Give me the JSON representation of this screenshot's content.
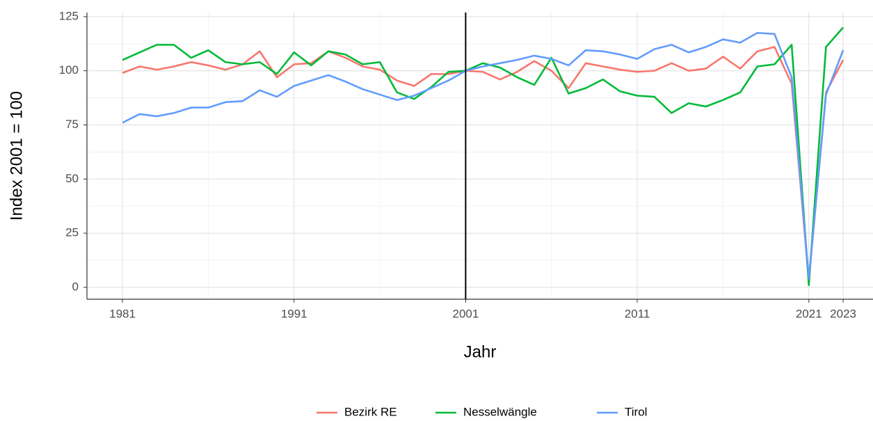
{
  "chart_data": {
    "type": "line",
    "x_label": "Jahr",
    "y_label": "Index 2001 = 100",
    "x": [
      1981,
      1982,
      1983,
      1984,
      1985,
      1986,
      1987,
      1988,
      1989,
      1990,
      1991,
      1992,
      1993,
      1994,
      1995,
      1996,
      1997,
      1998,
      1999,
      2000,
      2001,
      2002,
      2003,
      2004,
      2005,
      2006,
      2007,
      2008,
      2009,
      2010,
      2011,
      2012,
      2013,
      2014,
      2015,
      2016,
      2017,
      2018,
      2019,
      2020,
      2021,
      2022,
      2023
    ],
    "series": [
      {
        "name": "Bezirk RE",
        "color": "#F8766D",
        "values": [
          99,
          102,
          100.5,
          102,
          104,
          102.5,
          100.5,
          103,
          109,
          97,
          103,
          103.5,
          109,
          106,
          102,
          100.5,
          95.5,
          93,
          98.5,
          98.5,
          100,
          99.5,
          96,
          99.5,
          104.5,
          100,
          92,
          103.5,
          102,
          100.5,
          99.5,
          100,
          103.5,
          100,
          101,
          106.5,
          101,
          109,
          111,
          94,
          3,
          90,
          105
        ]
      },
      {
        "name": "Nesselwängle",
        "color": "#00BA38",
        "values": [
          105,
          108.5,
          112,
          112,
          106,
          109.5,
          104,
          103,
          104,
          98.5,
          108.5,
          102.5,
          109,
          107.5,
          103,
          104,
          90,
          87,
          92.5,
          99.5,
          100,
          103.5,
          101.5,
          97,
          93.5,
          106,
          89.5,
          92,
          96,
          90.5,
          88.5,
          88,
          80.5,
          85,
          83.5,
          86.5,
          90,
          102,
          103,
          112,
          1,
          111,
          120
        ]
      },
      {
        "name": "Tirol",
        "color": "#619CFF",
        "values": [
          76,
          80,
          79,
          80.5,
          83,
          83,
          85.5,
          86,
          91,
          88,
          93,
          95.5,
          98,
          95,
          91.5,
          89,
          86.5,
          88.5,
          92,
          95.5,
          100,
          102,
          103.5,
          105,
          107,
          105.5,
          102.5,
          109.5,
          109,
          107.5,
          105.5,
          110,
          112,
          108.5,
          111,
          114.5,
          113,
          117.5,
          117,
          97,
          4,
          89,
          109.5
        ]
      }
    ],
    "vline": 2001,
    "xlim": [
      1978.93,
      2024.74
    ],
    "ylim": [
      -5.5,
      126.9
    ],
    "xticks": [
      1981,
      1991,
      2001,
      2011,
      2021,
      2023
    ],
    "yticks": [
      0,
      25,
      50,
      75,
      100,
      125
    ],
    "grid": true,
    "legend": "bottom"
  }
}
